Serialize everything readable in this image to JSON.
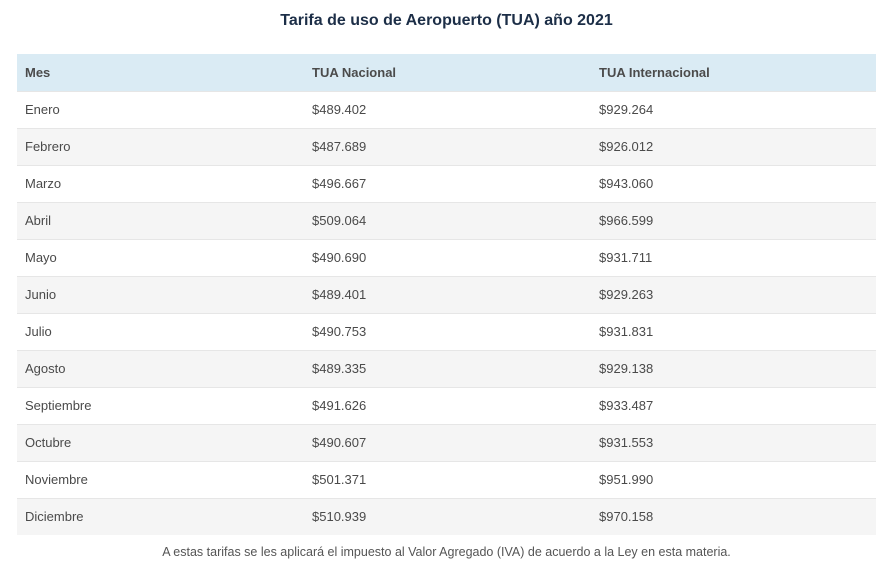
{
  "title": "Tarifa de uso de Aeropuerto (TUA) año 2021",
  "table": {
    "headers": [
      "Mes",
      "TUA Nacional",
      "TUA Internacional"
    ],
    "rows": [
      [
        "Enero",
        "$489.402",
        "$929.264"
      ],
      [
        "Febrero",
        "$487.689",
        "$926.012"
      ],
      [
        "Marzo",
        "$496.667",
        "$943.060"
      ],
      [
        "Abril",
        "$509.064",
        "$966.599"
      ],
      [
        "Mayo",
        "$490.690",
        "$931.711"
      ],
      [
        "Junio",
        "$489.401",
        "$929.263"
      ],
      [
        "Julio",
        "$490.753",
        "$931.831"
      ],
      [
        "Agosto",
        "$489.335",
        "$929.138"
      ],
      [
        "Septiembre",
        "$491.626",
        "$933.487"
      ],
      [
        "Octubre",
        "$490.607",
        "$931.553"
      ],
      [
        "Noviembre",
        "$501.371",
        "$951.990"
      ],
      [
        "Diciembre",
        "$510.939",
        "$970.158"
      ]
    ]
  },
  "note": "A estas tarifas se les aplicará el impuesto al Valor Agregado (IVA) de acuerdo a la Ley en esta materia.",
  "colors": {
    "header_bg": "#daebf4",
    "title": "#1c2e47",
    "row_alt": "#f5f5f5"
  }
}
